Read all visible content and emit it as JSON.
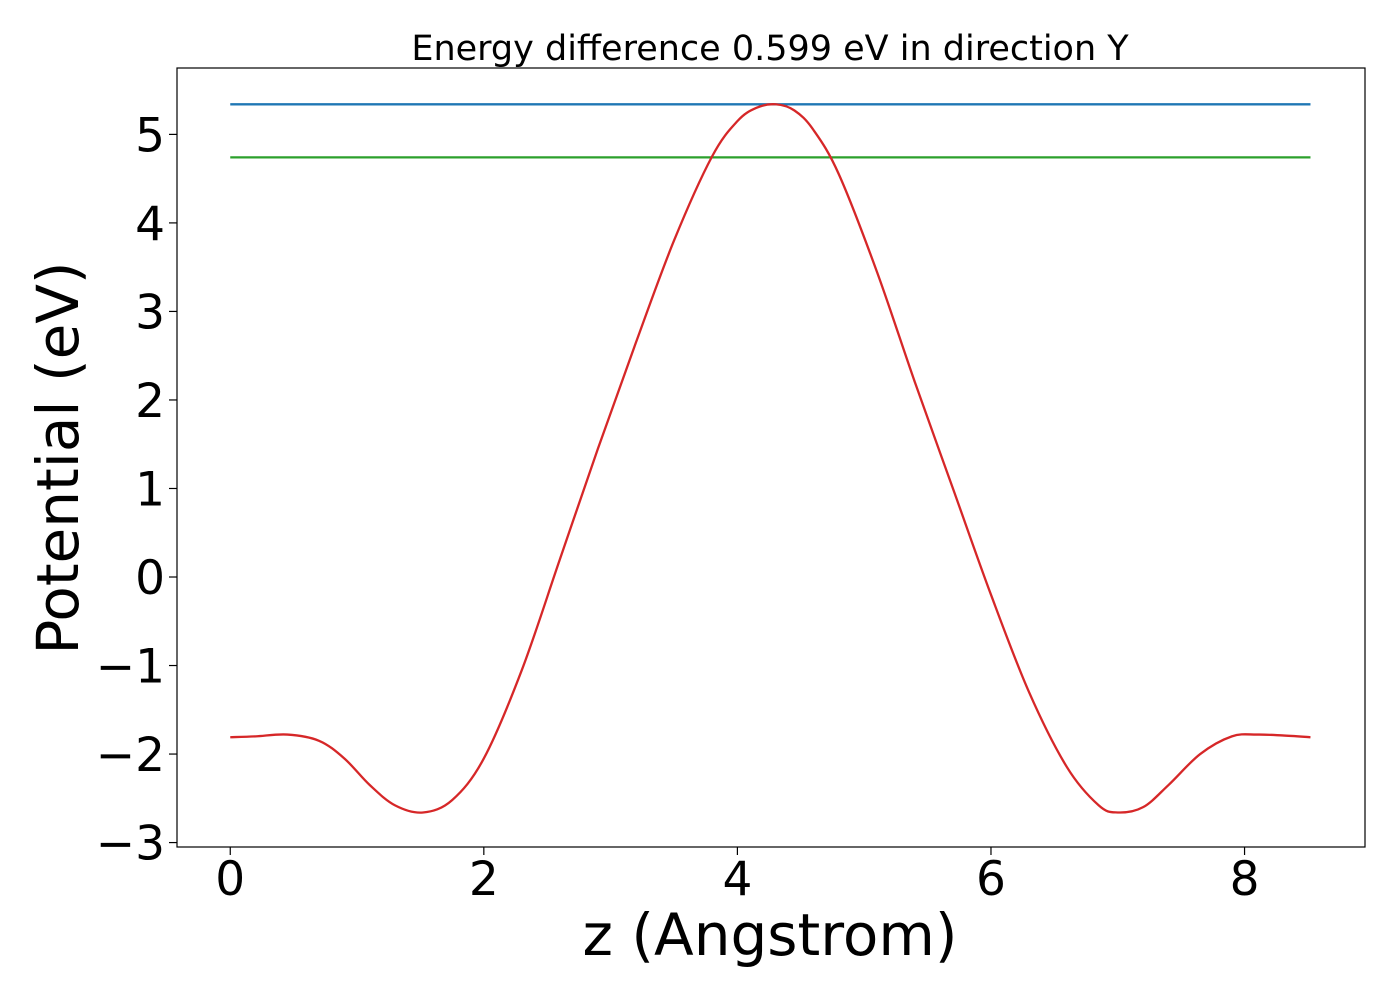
{
  "chart_data": {
    "type": "line",
    "title": "Energy difference 0.599 eV in direction Y",
    "xlabel": "z (Angstrom)",
    "ylabel": "Potential (eV)",
    "xlim": [
      -0.42,
      8.95
    ],
    "ylim": [
      -3.05,
      5.75
    ],
    "xticks": [
      0,
      2,
      4,
      6,
      8
    ],
    "yticks": [
      -3,
      -2,
      -1,
      0,
      1,
      2,
      3,
      4,
      5
    ],
    "xtick_labels": [
      "0",
      "2",
      "4",
      "6",
      "8"
    ],
    "ytick_labels": [
      "−3",
      "−2",
      "−1",
      "0",
      "1",
      "2",
      "3",
      "4",
      "5"
    ],
    "grid": false,
    "legend": "none",
    "series": [
      {
        "color": "#1f77b4",
        "x": [
          0.0,
          8.52
        ],
        "y": [
          5.34,
          5.34
        ]
      },
      {
        "color": "#2ca02c",
        "x": [
          0.0,
          8.52
        ],
        "y": [
          4.74,
          4.74
        ]
      },
      {
        "color": "#d62728",
        "x": [
          0.0,
          0.2,
          0.45,
          0.7,
          0.9,
          1.1,
          1.3,
          1.52,
          1.75,
          2.0,
          2.3,
          2.6,
          2.9,
          3.2,
          3.5,
          3.8,
          4.0,
          4.15,
          4.3,
          4.45,
          4.6,
          4.8,
          5.1,
          5.4,
          5.7,
          6.0,
          6.3,
          6.6,
          6.85,
          7.0,
          7.2,
          7.4,
          7.65,
          7.9,
          8.1,
          8.3,
          8.52
        ],
        "y": [
          -1.81,
          -1.8,
          -1.78,
          -1.85,
          -2.05,
          -2.35,
          -2.58,
          -2.66,
          -2.52,
          -2.05,
          -1.05,
          0.2,
          1.45,
          2.65,
          3.8,
          4.75,
          5.15,
          5.3,
          5.34,
          5.27,
          5.05,
          4.55,
          3.45,
          2.2,
          1.0,
          -0.2,
          -1.3,
          -2.15,
          -2.58,
          -2.66,
          -2.6,
          -2.35,
          -2.0,
          -1.8,
          -1.78,
          -1.79,
          -1.81
        ]
      }
    ]
  }
}
